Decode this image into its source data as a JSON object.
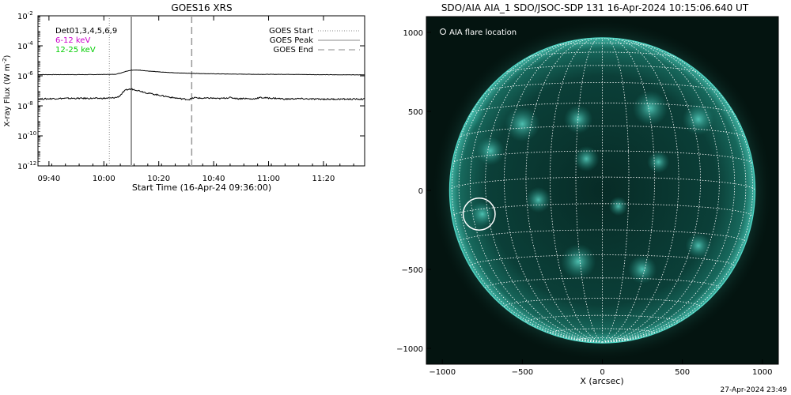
{
  "chart_data": [
    {
      "type": "line",
      "title": "GOES16 XRS",
      "xlabel": "Start Time (16-Apr-24 09:36:00)",
      "ylabel": "X-ray Flux (W m",
      "ylabel_sup": "-2",
      "ylabel_end": ")",
      "x_range_minutes": [
        0,
        119
      ],
      "x_ticks": [
        {
          "label": "09:40",
          "minute": 4
        },
        {
          "label": "10:00",
          "minute": 24
        },
        {
          "label": "10:20",
          "minute": 44
        },
        {
          "label": "10:40",
          "minute": 64
        },
        {
          "label": "11:00",
          "minute": 84
        },
        {
          "label": "11:20",
          "minute": 104
        }
      ],
      "y_scale": "log",
      "ylim_exp": [
        -12,
        -2
      ],
      "y_ticks": [
        {
          "base": "10",
          "exp": "-2"
        },
        {
          "base": "10",
          "exp": "-4"
        },
        {
          "base": "10",
          "exp": "-6"
        },
        {
          "base": "10",
          "exp": "-8"
        },
        {
          "base": "10",
          "exp": "-10"
        },
        {
          "base": "10",
          "exp": "-12"
        }
      ],
      "legend_left": [
        {
          "label": "Det01,3,4,5,6,9",
          "color": "#000000"
        },
        {
          "label": "6-12 keV",
          "color": "#cc00cc"
        },
        {
          "label": "12-25 keV",
          "color": "#00cc00"
        }
      ],
      "legend_right": [
        {
          "label": "GOES Start",
          "style": "dotted"
        },
        {
          "label": "GOES Peak",
          "style": "solid"
        },
        {
          "label": "GOES End",
          "style": "dashed"
        }
      ],
      "event_lines_minutes": {
        "start": 26,
        "peak": 34,
        "end": 56
      },
      "series": [
        {
          "band": "long",
          "x_minutes": [
            0,
            10,
            20,
            28,
            30,
            32,
            34,
            37,
            40,
            45,
            50,
            56,
            62,
            70,
            80,
            90,
            100,
            110,
            119
          ],
          "log_flux": [
            -5.92,
            -5.92,
            -5.92,
            -5.9,
            -5.82,
            -5.7,
            -5.62,
            -5.62,
            -5.68,
            -5.75,
            -5.8,
            -5.83,
            -5.86,
            -5.88,
            -5.9,
            -5.9,
            -5.92,
            -5.93,
            -5.93
          ]
        },
        {
          "band": "short",
          "x_minutes": [
            0,
            5,
            10,
            15,
            20,
            24,
            27,
            29,
            30,
            31,
            32,
            33,
            34,
            36,
            38,
            40,
            43,
            46,
            49,
            52,
            55,
            57,
            60,
            63,
            66,
            68,
            70,
            73,
            75,
            78,
            81,
            84,
            87,
            90,
            95,
            100,
            105,
            110,
            115,
            119
          ],
          "log_flux": [
            -7.55,
            -7.52,
            -7.5,
            -7.5,
            -7.5,
            -7.5,
            -7.48,
            -7.42,
            -7.3,
            -7.1,
            -6.95,
            -6.9,
            -6.88,
            -6.95,
            -7.05,
            -7.15,
            -7.25,
            -7.35,
            -7.45,
            -7.52,
            -7.58,
            -7.45,
            -7.5,
            -7.48,
            -7.52,
            -7.48,
            -7.45,
            -7.52,
            -7.5,
            -7.55,
            -7.45,
            -7.48,
            -7.5,
            -7.55,
            -7.52,
            -7.55,
            -7.55,
            -7.55,
            -7.55,
            -7.55
          ]
        }
      ]
    },
    {
      "type": "image",
      "title": "SDO/AIA AIA_1 SDO/JSOC-SDP 131 16-Apr-2024 10:15:06.640 UT",
      "xlabel": "X (arcsec)",
      "ylabel": "",
      "xlim": [
        -1100,
        1100
      ],
      "ylim": [
        -1100,
        1100
      ],
      "x_ticks": [
        -1000,
        -500,
        0,
        500,
        1000
      ],
      "y_ticks": [
        1000,
        500,
        0,
        -500,
        -1000
      ],
      "x_tick_labels": [
        "−1000",
        "−500",
        "0",
        "500",
        "1000"
      ],
      "y_tick_labels": [
        "1000",
        "500",
        "0",
        "−500",
        "−1000"
      ],
      "solar_radius_arcsec": 960,
      "grid_spacing_deg": 10,
      "legend": "AIA flare location",
      "flare": {
        "x": -770,
        "y": -150,
        "r": 100
      },
      "colors": {
        "background": "#041410",
        "disk": "#0a3b34",
        "limb": "#4fd9c8",
        "grid": "#ffffff",
        "active": "#2fb5a4"
      }
    }
  ],
  "timestamp": "27-Apr-2024 23:49"
}
